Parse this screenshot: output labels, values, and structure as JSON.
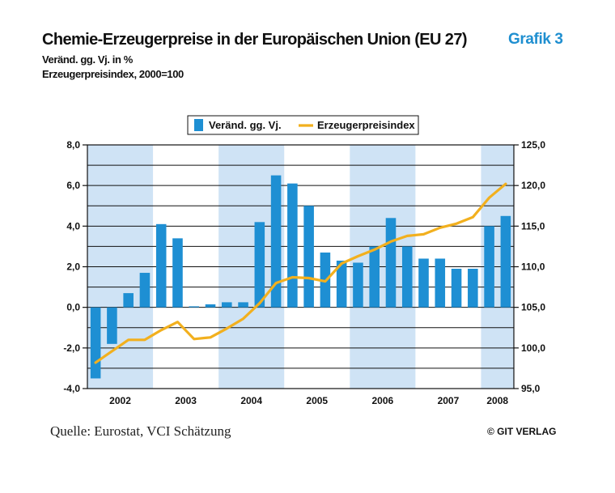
{
  "header": {
    "title": "Chemie-Erzeugerpreise in der Europäischen Union (EU 27)",
    "grafik": "Grafik 3",
    "subtitle1": "Veränd. gg. Vj. in %",
    "subtitle2": "Erzeugerpreisindex, 2000=100"
  },
  "footer": {
    "source": "Quelle: Eurostat, VCI Schätzung",
    "copyright": "© GIT VERLAG"
  },
  "colors": {
    "bar": "#1e8fd3",
    "line": "#f2b01e",
    "shade": "#cfe3f5",
    "grid": "#111111"
  },
  "chart_data": {
    "type": "bar",
    "years": [
      "2002",
      "2003",
      "2004",
      "2005",
      "2006",
      "2007",
      "2008"
    ],
    "shaded_years": [
      "2002",
      "2004",
      "2006",
      "2008"
    ],
    "quarters_per_year": [
      4,
      4,
      4,
      4,
      4,
      4,
      2
    ],
    "legend": [
      "Veränd. gg. Vj.",
      "Erzeugerpreisindex"
    ],
    "legend_position": "top",
    "grid": true,
    "y_left": {
      "min": -4,
      "max": 8,
      "ticks": [
        "8,0",
        "6,0",
        "4,0",
        "2,0",
        "0,0",
        "-2,0",
        "-4,0"
      ]
    },
    "y_right": {
      "min": 95,
      "max": 125,
      "ticks": [
        "125,0",
        "120,0",
        "115,0",
        "110,0",
        "105,0",
        "100,0",
        "95,0"
      ]
    },
    "series": [
      {
        "name": "Veränd. gg. Vj.",
        "type": "bar",
        "axis": "left",
        "values": [
          -3.5,
          -1.8,
          0.7,
          1.7,
          4.1,
          3.4,
          0.05,
          0.15,
          0.25,
          0.25,
          4.2,
          6.5,
          6.1,
          5.0,
          2.7,
          2.3,
          2.2,
          3.0,
          4.4,
          3.0,
          2.4,
          2.4,
          1.9,
          1.9,
          4.0,
          4.5
        ]
      },
      {
        "name": "Erzeugerpreisindex",
        "type": "line",
        "axis": "right",
        "values": [
          98.2,
          99.6,
          101.0,
          101.0,
          102.2,
          103.2,
          101.1,
          101.3,
          102.4,
          103.6,
          105.5,
          108.0,
          108.7,
          108.6,
          108.2,
          110.4,
          111.3,
          112.1,
          113.1,
          113.8,
          114.0,
          114.8,
          115.3,
          116.1,
          118.5,
          120.2
        ]
      }
    ]
  }
}
